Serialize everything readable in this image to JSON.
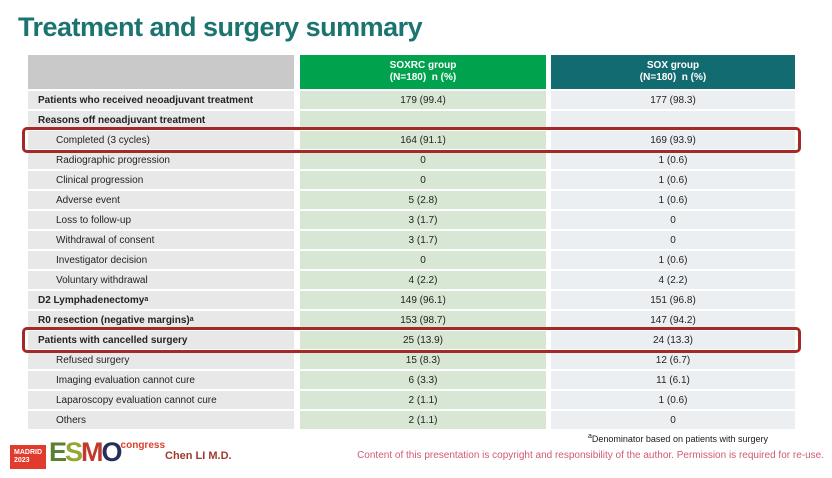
{
  "title": "Treatment and surgery summary",
  "table": {
    "columns": [
      {
        "line1": "",
        "line2": ""
      },
      {
        "line1": "SOXRC group",
        "line2": "(N=180)  n (%)"
      },
      {
        "line1": "SOX group",
        "line2": "(N=180)  n (%)"
      }
    ],
    "rows": [
      {
        "label": "Patients who received neoadjuvant treatment",
        "bold": true,
        "indent": false,
        "soxrc": "179 (99.4)",
        "sox": "177 (98.3)",
        "highlight": false
      },
      {
        "label": "Reasons off neoadjuvant treatment",
        "bold": true,
        "indent": false,
        "soxrc": "",
        "sox": "",
        "highlight": false
      },
      {
        "label": "Completed (3 cycles)",
        "bold": false,
        "indent": true,
        "soxrc": "164 (91.1)",
        "sox": "169 (93.9)",
        "highlight": true
      },
      {
        "label": "Radiographic progression",
        "bold": false,
        "indent": true,
        "soxrc": "0",
        "sox": "1 (0.6)",
        "highlight": false
      },
      {
        "label": "Clinical progression",
        "bold": false,
        "indent": true,
        "soxrc": "0",
        "sox": "1 (0.6)",
        "highlight": false
      },
      {
        "label": "Adverse event",
        "bold": false,
        "indent": true,
        "soxrc": "5 (2.8)",
        "sox": "1 (0.6)",
        "highlight": false
      },
      {
        "label": "Loss to follow-up",
        "bold": false,
        "indent": true,
        "soxrc": "3 (1.7)",
        "sox": "0",
        "highlight": false
      },
      {
        "label": "Withdrawal of consent",
        "bold": false,
        "indent": true,
        "soxrc": "3 (1.7)",
        "sox": "0",
        "highlight": false
      },
      {
        "label": "Investigator decision",
        "bold": false,
        "indent": true,
        "soxrc": "0",
        "sox": "1 (0.6)",
        "highlight": false
      },
      {
        "label": "Voluntary withdrawal",
        "bold": false,
        "indent": true,
        "soxrc": "4 (2.2)",
        "sox": "4 (2.2)",
        "highlight": false
      },
      {
        "label": "D2 Lymphadenectomy",
        "sup": "a",
        "bold": true,
        "indent": false,
        "soxrc": "149 (96.1)",
        "sox": "151 (96.8)",
        "highlight": false
      },
      {
        "label": "R0 resection (negative margins)",
        "sup": "a",
        "bold": true,
        "indent": false,
        "soxrc": "153 (98.7)",
        "sox": "147 (94.2)",
        "highlight": false
      },
      {
        "label": "Patients with cancelled surgery",
        "bold": true,
        "indent": false,
        "soxrc": "25 (13.9)",
        "sox": "24 (13.3)",
        "highlight": true
      },
      {
        "label": "Refused surgery",
        "bold": false,
        "indent": true,
        "soxrc": "15 (8.3)",
        "sox": "12 (6.7)",
        "highlight": false
      },
      {
        "label": "Imaging evaluation cannot cure",
        "bold": false,
        "indent": true,
        "soxrc": "6 (3.3)",
        "sox": "11 (6.1)",
        "highlight": false
      },
      {
        "label": "Laparoscopy evaluation cannot cure",
        "bold": false,
        "indent": true,
        "soxrc": "2 (1.1)",
        "sox": "1 (0.6)",
        "highlight": false
      },
      {
        "label": "Others",
        "bold": false,
        "indent": true,
        "soxrc": "2 (1.1)",
        "sox": "0",
        "highlight": false
      }
    ]
  },
  "footer": {
    "logo": {
      "madrid_line1": "MADRID",
      "madrid_line2": "2023",
      "esmo_letters": [
        "E",
        "S",
        "M",
        "O"
      ],
      "congress": "congress"
    },
    "author": "Chen LI M.D.",
    "footnote_sup": "a",
    "footnote_text": "Denominator based on patients with surgery",
    "copyright": "Content of this presentation is copyright and responsibility of the author.  Permission is required for re-use."
  },
  "colors": {
    "title": "#1b7470",
    "header_label_bg": "#c9c9c9",
    "header_soxrc_bg": "#00a24e",
    "header_sox_bg": "#136b72",
    "label_cell_bg": "#e8e8e8",
    "soxrc_cell_bg": "#d7e7d3",
    "sox_cell_bg": "#eceff1",
    "highlight_border": "#a32a26",
    "copyright_text": "#d15a74",
    "logo_red": "#e23b2e"
  }
}
